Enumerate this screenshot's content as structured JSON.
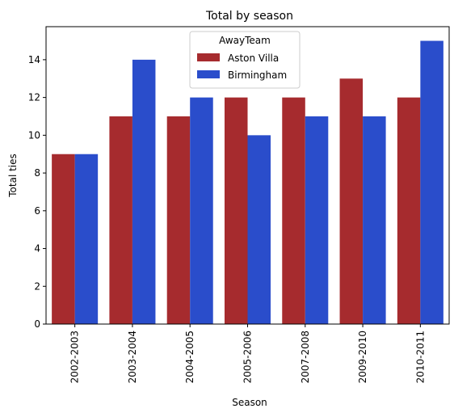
{
  "chart_data": {
    "type": "bar",
    "title": "Total by season",
    "xlabel": "Season",
    "ylabel": "Total ties",
    "categories": [
      "2002-2003",
      "2003-2004",
      "2004-2005",
      "2005-2006",
      "2007-2008",
      "2009-2010",
      "2010-2011"
    ],
    "series": [
      {
        "name": "Aston Villa",
        "color": "#a62b2e",
        "values": [
          9,
          11,
          11,
          12,
          12,
          13,
          12
        ]
      },
      {
        "name": "Birmingham",
        "color": "#2a4dcb",
        "values": [
          9,
          14,
          12,
          10,
          11,
          11,
          15
        ]
      }
    ],
    "ylim": [
      0,
      15.75
    ],
    "yticks": [
      "0",
      "2",
      "4",
      "6",
      "8",
      "10",
      "12",
      "14"
    ],
    "grid": false,
    "legend": {
      "title": "AwayTeam",
      "placement": "top-center"
    }
  }
}
